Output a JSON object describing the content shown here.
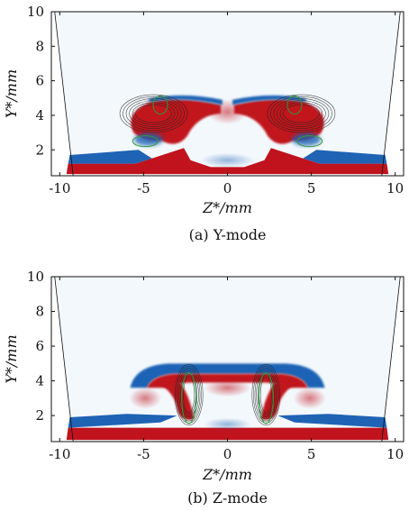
{
  "chart_data": [
    {
      "type": "heatmap",
      "caption": "(a) Y-mode",
      "xlabel": "Z*/mm",
      "ylabel": "Y*/mm",
      "xlim": [
        -10.5,
        10.5
      ],
      "ylim": [
        0.5,
        10
      ],
      "xticks": [
        -10,
        -5,
        0,
        5,
        10
      ],
      "yticks": [
        2,
        4,
        6,
        8,
        10
      ],
      "x_tick_labels": [
        "-10",
        "-5",
        "0",
        "5",
        "10"
      ],
      "y_tick_labels": [
        "2",
        "4",
        "6",
        "8",
        "10"
      ],
      "colors": {
        "positive": "#c0131e",
        "negative": "#1f63b5",
        "neutral": "#ffffff",
        "contour_dark": "#222222",
        "contour_green": "#2e9a3a"
      },
      "mode": "Y"
    },
    {
      "type": "heatmap",
      "caption": "(b) Z-mode",
      "xlabel": "Z*/mm",
      "ylabel": "Y*/mm",
      "xlim": [
        -10.5,
        10.5
      ],
      "ylim": [
        0.5,
        10
      ],
      "xticks": [
        -10,
        -5,
        0,
        5,
        10
      ],
      "yticks": [
        2,
        4,
        6,
        8,
        10
      ],
      "x_tick_labels": [
        "-10",
        "-5",
        "0",
        "5",
        "10"
      ],
      "y_tick_labels": [
        "2",
        "4",
        "6",
        "8",
        "10"
      ],
      "colors": {
        "positive": "#c0131e",
        "negative": "#1f63b5",
        "neutral": "#ffffff",
        "contour_dark": "#222222",
        "contour_green": "#2e9a3a"
      },
      "mode": "Z"
    }
  ]
}
